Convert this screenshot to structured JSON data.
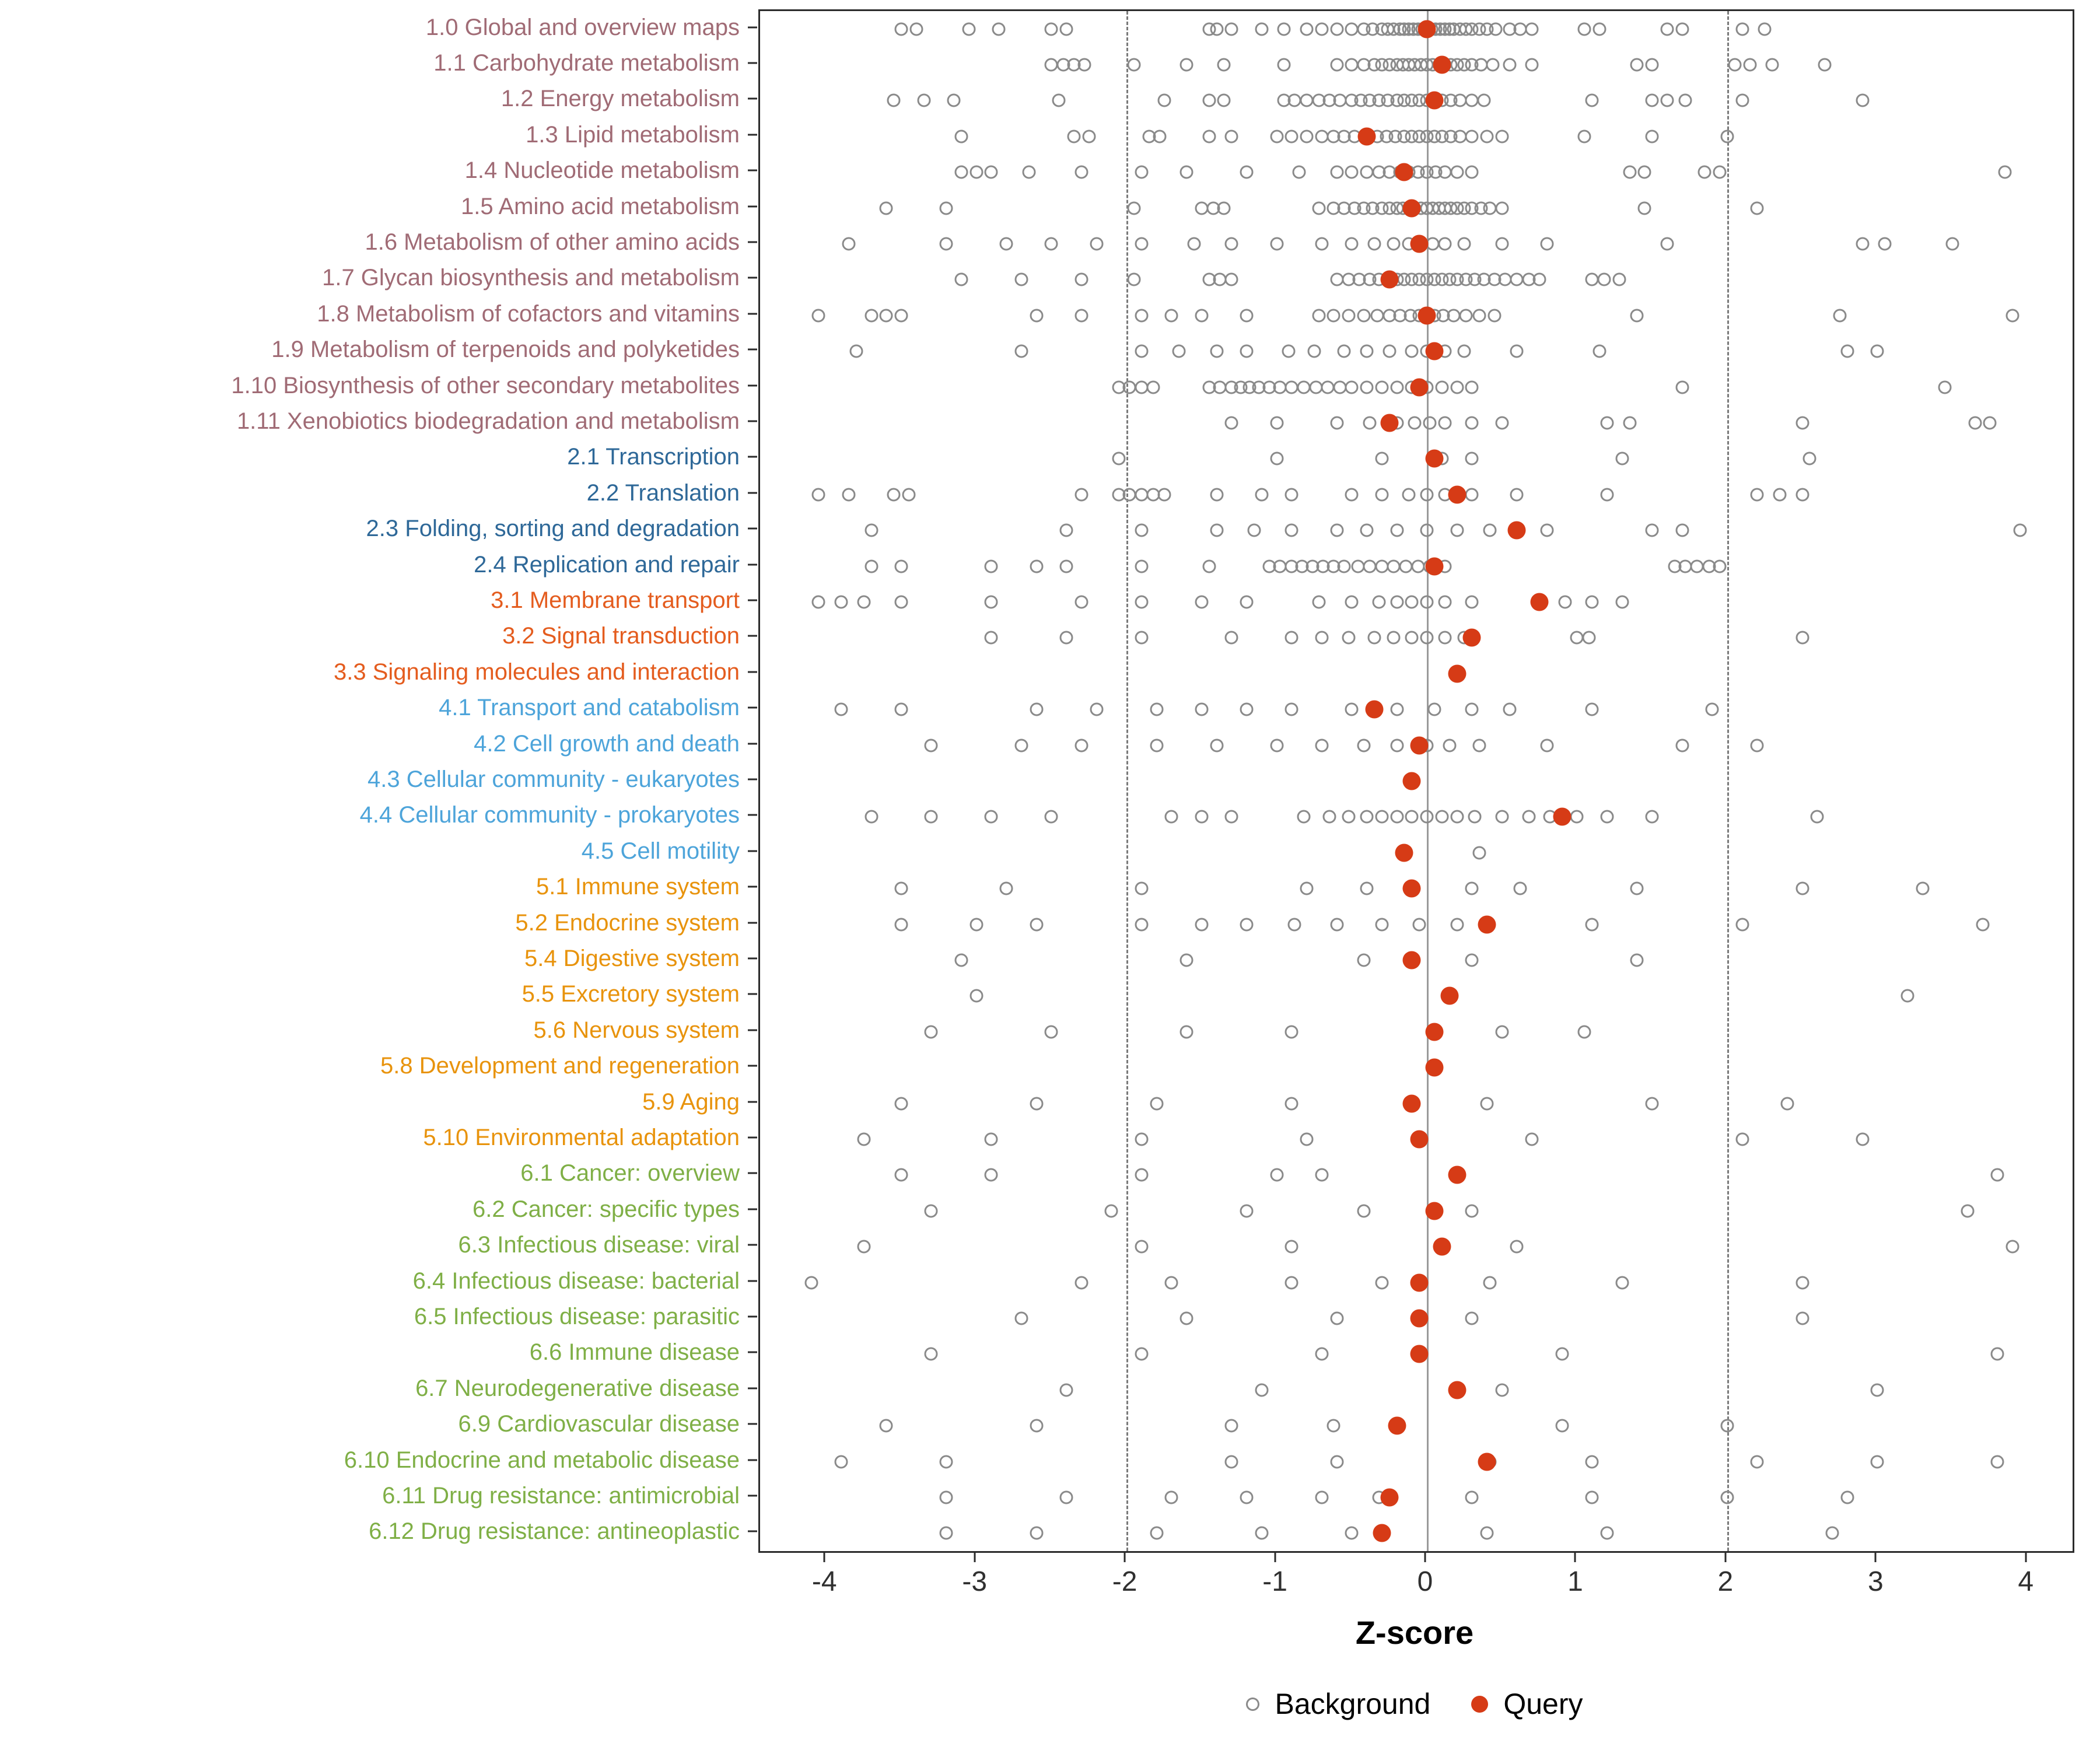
{
  "figure": {
    "xlabel": "Z-score"
  },
  "chart_data": {
    "type": "scatter",
    "title": "",
    "xlabel": "Z-score",
    "ylabel": "",
    "xlim": [
      -4.44,
      4.3
    ],
    "x_ticks": [
      -4,
      -3,
      -2,
      -1,
      0,
      1,
      2,
      3,
      4
    ],
    "reference_lines": {
      "solid": [
        0
      ],
      "dashed": [
        -2,
        2
      ]
    },
    "grid": false,
    "legend_position": "bottom",
    "legend": [
      {
        "label": "Background",
        "style": "open-gray-circle"
      },
      {
        "label": "Query",
        "style": "filled-red-circle"
      }
    ],
    "colors": {
      "query": "#D63B16",
      "background_stroke": "#8A8A8A",
      "groups": {
        "1": "#A06B75",
        "2": "#2E6898",
        "3": "#E45C1E",
        "4": "#4DA4DA",
        "5": "#E8930C",
        "6": "#7FAF46"
      }
    },
    "categories": [
      {
        "label": "1.0 Global and overview maps",
        "group": "1",
        "query": 0.0,
        "background": [
          -3.5,
          -3.4,
          -3.05,
          -2.85,
          -2.5,
          -2.4,
          -1.45,
          -1.4,
          -1.3,
          -1.1,
          -0.95,
          -0.8,
          -0.7,
          -0.6,
          -0.5,
          -0.42,
          -0.36,
          -0.3,
          -0.26,
          -0.22,
          -0.18,
          -0.15,
          -0.12,
          -0.09,
          -0.06,
          -0.03,
          0,
          0.03,
          0.06,
          0.09,
          0.12,
          0.15,
          0.18,
          0.22,
          0.26,
          0.3,
          0.35,
          0.4,
          0.46,
          0.55,
          0.62,
          0.7,
          1.05,
          1.15,
          1.6,
          1.7,
          2.1,
          2.25
        ]
      },
      {
        "label": "1.1 Carbohydrate metabolism",
        "group": "1",
        "query": 0.1,
        "background": [
          -2.5,
          -2.42,
          -2.35,
          -2.28,
          -1.95,
          -1.6,
          -1.35,
          -0.95,
          -0.6,
          -0.5,
          -0.42,
          -0.35,
          -0.3,
          -0.25,
          -0.2,
          -0.16,
          -0.12,
          -0.08,
          -0.04,
          0,
          0.04,
          0.08,
          0.12,
          0.16,
          0.2,
          0.25,
          0.3,
          0.36,
          0.44,
          0.55,
          0.7,
          1.4,
          1.5,
          2.05,
          2.15,
          2.3,
          2.65
        ]
      },
      {
        "label": "1.2 Energy metabolism",
        "group": "1",
        "query": 0.05,
        "background": [
          -3.55,
          -3.35,
          -3.15,
          -2.45,
          -1.75,
          -1.45,
          -1.35,
          -0.95,
          -0.88,
          -0.8,
          -0.72,
          -0.65,
          -0.58,
          -0.5,
          -0.44,
          -0.38,
          -0.32,
          -0.26,
          -0.2,
          -0.15,
          -0.1,
          -0.05,
          0,
          0.05,
          0.1,
          0.16,
          0.22,
          0.3,
          0.38,
          1.1,
          1.5,
          1.6,
          1.72,
          2.1,
          2.9
        ]
      },
      {
        "label": "1.3 Lipid metabolism",
        "group": "1",
        "query": -0.4,
        "background": [
          -3.1,
          -2.35,
          -2.25,
          -1.85,
          -1.78,
          -1.45,
          -1.3,
          -1.0,
          -0.9,
          -0.8,
          -0.7,
          -0.62,
          -0.55,
          -0.48,
          -0.4,
          -0.33,
          -0.27,
          -0.21,
          -0.15,
          -0.1,
          -0.05,
          0,
          0.05,
          0.1,
          0.16,
          0.22,
          0.3,
          0.4,
          0.5,
          1.05,
          1.5,
          2.0
        ]
      },
      {
        "label": "1.4 Nucleotide metabolism",
        "group": "1",
        "query": -0.15,
        "background": [
          -3.1,
          -3.0,
          -2.9,
          -2.65,
          -2.3,
          -1.9,
          -1.6,
          -1.2,
          -0.85,
          -0.6,
          -0.5,
          -0.4,
          -0.32,
          -0.25,
          -0.18,
          -0.12,
          -0.06,
          0,
          0.06,
          0.12,
          0.2,
          0.3,
          1.35,
          1.45,
          1.85,
          1.95,
          3.85
        ]
      },
      {
        "label": "1.5 Amino acid metabolism",
        "group": "1",
        "query": -0.1,
        "background": [
          -3.6,
          -3.2,
          -1.95,
          -1.5,
          -1.42,
          -1.35,
          -0.72,
          -0.62,
          -0.55,
          -0.48,
          -0.42,
          -0.36,
          -0.3,
          -0.25,
          -0.2,
          -0.16,
          -0.12,
          -0.08,
          -0.04,
          0,
          0.04,
          0.08,
          0.12,
          0.16,
          0.2,
          0.25,
          0.3,
          0.36,
          0.42,
          0.5,
          1.45,
          2.2
        ]
      },
      {
        "label": "1.6 Metabolism of other amino acids",
        "group": "1",
        "query": -0.05,
        "background": [
          -3.85,
          -3.2,
          -2.8,
          -2.5,
          -2.2,
          -1.9,
          -1.55,
          -1.3,
          -1.0,
          -0.7,
          -0.5,
          -0.35,
          -0.22,
          -0.12,
          -0.04,
          0.04,
          0.12,
          0.25,
          0.5,
          0.8,
          1.6,
          2.9,
          3.05,
          3.5
        ]
      },
      {
        "label": "1.7 Glycan biosynthesis and metabolism",
        "group": "1",
        "query": -0.25,
        "background": [
          -3.1,
          -2.7,
          -2.3,
          -1.95,
          -1.45,
          -1.38,
          -1.3,
          -0.6,
          -0.52,
          -0.45,
          -0.38,
          -0.32,
          -0.26,
          -0.2,
          -0.15,
          -0.1,
          -0.05,
          0,
          0.05,
          0.1,
          0.15,
          0.2,
          0.26,
          0.32,
          0.38,
          0.45,
          0.52,
          0.6,
          0.68,
          0.75,
          1.1,
          1.18,
          1.28
        ]
      },
      {
        "label": "1.8 Metabolism of cofactors and vitamins",
        "group": "1",
        "query": 0.0,
        "background": [
          -4.05,
          -3.7,
          -3.6,
          -3.5,
          -2.6,
          -2.3,
          -1.9,
          -1.7,
          -1.5,
          -1.2,
          -0.72,
          -0.62,
          -0.52,
          -0.42,
          -0.33,
          -0.25,
          -0.18,
          -0.11,
          -0.05,
          0,
          0.05,
          0.11,
          0.18,
          0.26,
          0.35,
          0.45,
          1.4,
          2.75,
          3.9
        ]
      },
      {
        "label": "1.9 Metabolism of terpenoids and polyketides",
        "group": "1",
        "query": 0.05,
        "background": [
          -3.8,
          -2.7,
          -1.9,
          -1.65,
          -1.4,
          -1.2,
          -0.92,
          -0.75,
          -0.55,
          -0.4,
          -0.25,
          -0.1,
          0,
          0.12,
          0.25,
          0.6,
          1.15,
          2.8,
          3.0
        ]
      },
      {
        "label": "1.10 Biosynthesis of other secondary metabolites",
        "group": "1",
        "query": -0.05,
        "background": [
          -2.05,
          -1.98,
          -1.9,
          -1.82,
          -1.45,
          -1.38,
          -1.3,
          -1.24,
          -1.18,
          -1.12,
          -1.05,
          -0.98,
          -0.9,
          -0.82,
          -0.74,
          -0.66,
          -0.58,
          -0.5,
          -0.4,
          -0.3,
          -0.2,
          -0.1,
          0,
          0.1,
          0.2,
          0.3,
          1.7,
          3.45
        ]
      },
      {
        "label": "1.11 Xenobiotics biodegradation and metabolism",
        "group": "1",
        "query": -0.25,
        "background": [
          -1.3,
          -1.0,
          -0.6,
          -0.38,
          -0.2,
          -0.08,
          0.02,
          0.12,
          0.3,
          0.5,
          1.2,
          1.35,
          2.5,
          3.65,
          3.75
        ]
      },
      {
        "label": "2.1 Transcription",
        "group": "2",
        "query": 0.05,
        "background": [
          -2.05,
          -1.0,
          -0.3,
          0.1,
          0.3,
          1.3,
          2.55
        ]
      },
      {
        "label": "2.2 Translation",
        "group": "2",
        "query": 0.2,
        "background": [
          -4.05,
          -3.85,
          -3.55,
          -3.45,
          -2.3,
          -2.05,
          -1.98,
          -1.9,
          -1.82,
          -1.75,
          -1.4,
          -1.1,
          -0.9,
          -0.5,
          -0.3,
          -0.12,
          0,
          0.12,
          0.3,
          0.6,
          1.2,
          2.2,
          2.35,
          2.5
        ]
      },
      {
        "label": "2.3 Folding, sorting and degradation",
        "group": "2",
        "query": 0.6,
        "background": [
          -3.7,
          -2.4,
          -1.9,
          -1.4,
          -1.15,
          -0.9,
          -0.6,
          -0.4,
          -0.2,
          0,
          0.2,
          0.42,
          0.8,
          1.5,
          1.7,
          3.95
        ]
      },
      {
        "label": "2.4 Replication and repair",
        "group": "2",
        "query": 0.05,
        "background": [
          -3.7,
          -3.5,
          -2.9,
          -2.6,
          -2.4,
          -1.9,
          -1.45,
          -1.05,
          -0.98,
          -0.9,
          -0.83,
          -0.76,
          -0.69,
          -0.62,
          -0.55,
          -0.46,
          -0.38,
          -0.3,
          -0.22,
          -0.14,
          -0.06,
          0.02,
          0.12,
          1.65,
          1.72,
          1.8,
          1.88,
          1.95
        ]
      },
      {
        "label": "3.1 Membrane transport",
        "group": "3",
        "query": 0.75,
        "background": [
          -4.05,
          -3.9,
          -3.75,
          -3.5,
          -2.9,
          -2.3,
          -1.9,
          -1.5,
          -1.2,
          -0.72,
          -0.5,
          -0.32,
          -0.2,
          -0.1,
          0,
          0.12,
          0.3,
          0.92,
          1.1,
          1.3
        ]
      },
      {
        "label": "3.2 Signal transduction",
        "group": "3",
        "query": 0.3,
        "background": [
          -2.9,
          -2.4,
          -1.9,
          -1.3,
          -0.9,
          -0.7,
          -0.52,
          -0.35,
          -0.22,
          -0.1,
          0,
          0.12,
          0.25,
          1.0,
          1.08,
          2.5
        ]
      },
      {
        "label": "3.3 Signaling molecules and interaction",
        "group": "3",
        "query": 0.2,
        "background": []
      },
      {
        "label": "4.1 Transport and catabolism",
        "group": "4",
        "query": -0.35,
        "background": [
          -3.9,
          -3.5,
          -2.6,
          -2.2,
          -1.8,
          -1.5,
          -1.2,
          -0.9,
          -0.5,
          -0.2,
          0.05,
          0.3,
          0.55,
          1.1,
          1.9
        ]
      },
      {
        "label": "4.2 Cell growth and death",
        "group": "4",
        "query": -0.05,
        "background": [
          -3.3,
          -2.7,
          -2.3,
          -1.8,
          -1.4,
          -1.0,
          -0.7,
          -0.42,
          -0.2,
          0,
          0.15,
          0.35,
          0.8,
          1.7,
          2.2
        ]
      },
      {
        "label": "4.3 Cellular community - eukaryotes",
        "group": "4",
        "query": -0.1,
        "background": []
      },
      {
        "label": "4.4 Cellular community - prokaryotes",
        "group": "4",
        "query": 0.9,
        "background": [
          -3.7,
          -3.3,
          -2.9,
          -2.5,
          -1.7,
          -1.5,
          -1.3,
          -0.82,
          -0.65,
          -0.52,
          -0.4,
          -0.3,
          -0.2,
          -0.1,
          0,
          0.1,
          0.2,
          0.32,
          0.5,
          0.68,
          0.82,
          1.0,
          1.2,
          1.5,
          2.6
        ]
      },
      {
        "label": "4.5 Cell motility",
        "group": "4",
        "query": -0.15,
        "background": [
          0.35
        ]
      },
      {
        "label": "5.1 Immune system",
        "group": "5",
        "query": -0.1,
        "background": [
          -3.5,
          -2.8,
          -1.9,
          -0.8,
          -0.4,
          0.3,
          0.62,
          1.4,
          2.5,
          3.3
        ]
      },
      {
        "label": "5.2 Endocrine system",
        "group": "5",
        "query": 0.4,
        "background": [
          -3.5,
          -3.0,
          -2.6,
          -1.9,
          -1.5,
          -1.2,
          -0.88,
          -0.6,
          -0.3,
          -0.05,
          0.2,
          1.1,
          2.1,
          3.7
        ]
      },
      {
        "label": "5.4 Digestive system",
        "group": "5",
        "query": -0.1,
        "background": [
          -3.1,
          -1.6,
          -0.42,
          0.3,
          1.4
        ]
      },
      {
        "label": "5.5 Excretory system",
        "group": "5",
        "query": 0.15,
        "background": [
          -3.0,
          3.2
        ]
      },
      {
        "label": "5.6 Nervous system",
        "group": "5",
        "query": 0.05,
        "background": [
          -3.3,
          -2.5,
          -1.6,
          -0.9,
          0.5,
          1.05
        ]
      },
      {
        "label": "5.8 Development and regeneration",
        "group": "5",
        "query": 0.05,
        "background": []
      },
      {
        "label": "5.9 Aging",
        "group": "5",
        "query": -0.1,
        "background": [
          -3.5,
          -2.6,
          -1.8,
          -0.9,
          0.4,
          1.5,
          2.4
        ]
      },
      {
        "label": "5.10 Environmental adaptation",
        "group": "5",
        "query": -0.05,
        "background": [
          -3.75,
          -2.9,
          -1.9,
          -0.8,
          0.7,
          2.1,
          2.9
        ]
      },
      {
        "label": "6.1 Cancer: overview",
        "group": "6",
        "query": 0.2,
        "background": [
          -3.5,
          -2.9,
          -1.9,
          -1.0,
          -0.7,
          3.8
        ]
      },
      {
        "label": "6.2 Cancer: specific types",
        "group": "6",
        "query": 0.05,
        "background": [
          -3.3,
          -2.1,
          -1.2,
          -0.42,
          0.3,
          3.6
        ]
      },
      {
        "label": "6.3 Infectious disease: viral",
        "group": "6",
        "query": 0.1,
        "background": [
          -3.75,
          -1.9,
          -0.9,
          0.6,
          3.9
        ]
      },
      {
        "label": "6.4 Infectious disease: bacterial",
        "group": "6",
        "query": -0.05,
        "background": [
          -4.1,
          -2.3,
          -1.7,
          -0.9,
          -0.3,
          0.42,
          1.3,
          2.5
        ]
      },
      {
        "label": "6.5 Infectious disease: parasitic",
        "group": "6",
        "query": -0.05,
        "background": [
          -2.7,
          -1.6,
          -0.6,
          0.3,
          2.5
        ]
      },
      {
        "label": "6.6 Immune disease",
        "group": "6",
        "query": -0.05,
        "background": [
          -3.3,
          -1.9,
          -0.7,
          0.9,
          3.8
        ]
      },
      {
        "label": "6.7 Neurodegenerative disease",
        "group": "6",
        "query": 0.2,
        "background": [
          -2.4,
          -1.1,
          0.5,
          3.0
        ]
      },
      {
        "label": "6.9 Cardiovascular disease",
        "group": "6",
        "query": -0.2,
        "background": [
          -3.6,
          -2.6,
          -1.3,
          -0.62,
          0.9,
          2.0
        ]
      },
      {
        "label": "6.10 Endocrine and metabolic disease",
        "group": "6",
        "query": 0.4,
        "background": [
          -3.9,
          -3.2,
          -1.3,
          -0.6,
          0.42,
          1.1,
          2.2,
          3.0,
          3.8
        ]
      },
      {
        "label": "6.11 Drug resistance: antimicrobial",
        "group": "6",
        "query": -0.25,
        "background": [
          -3.2,
          -2.4,
          -1.7,
          -1.2,
          -0.7,
          -0.32,
          0.3,
          1.1,
          2.0,
          2.8
        ]
      },
      {
        "label": "6.12 Drug resistance: antineoplastic",
        "group": "6",
        "query": -0.3,
        "background": [
          -3.2,
          -2.6,
          -1.8,
          -1.1,
          -0.5,
          0.4,
          1.2,
          2.7
        ]
      }
    ]
  }
}
